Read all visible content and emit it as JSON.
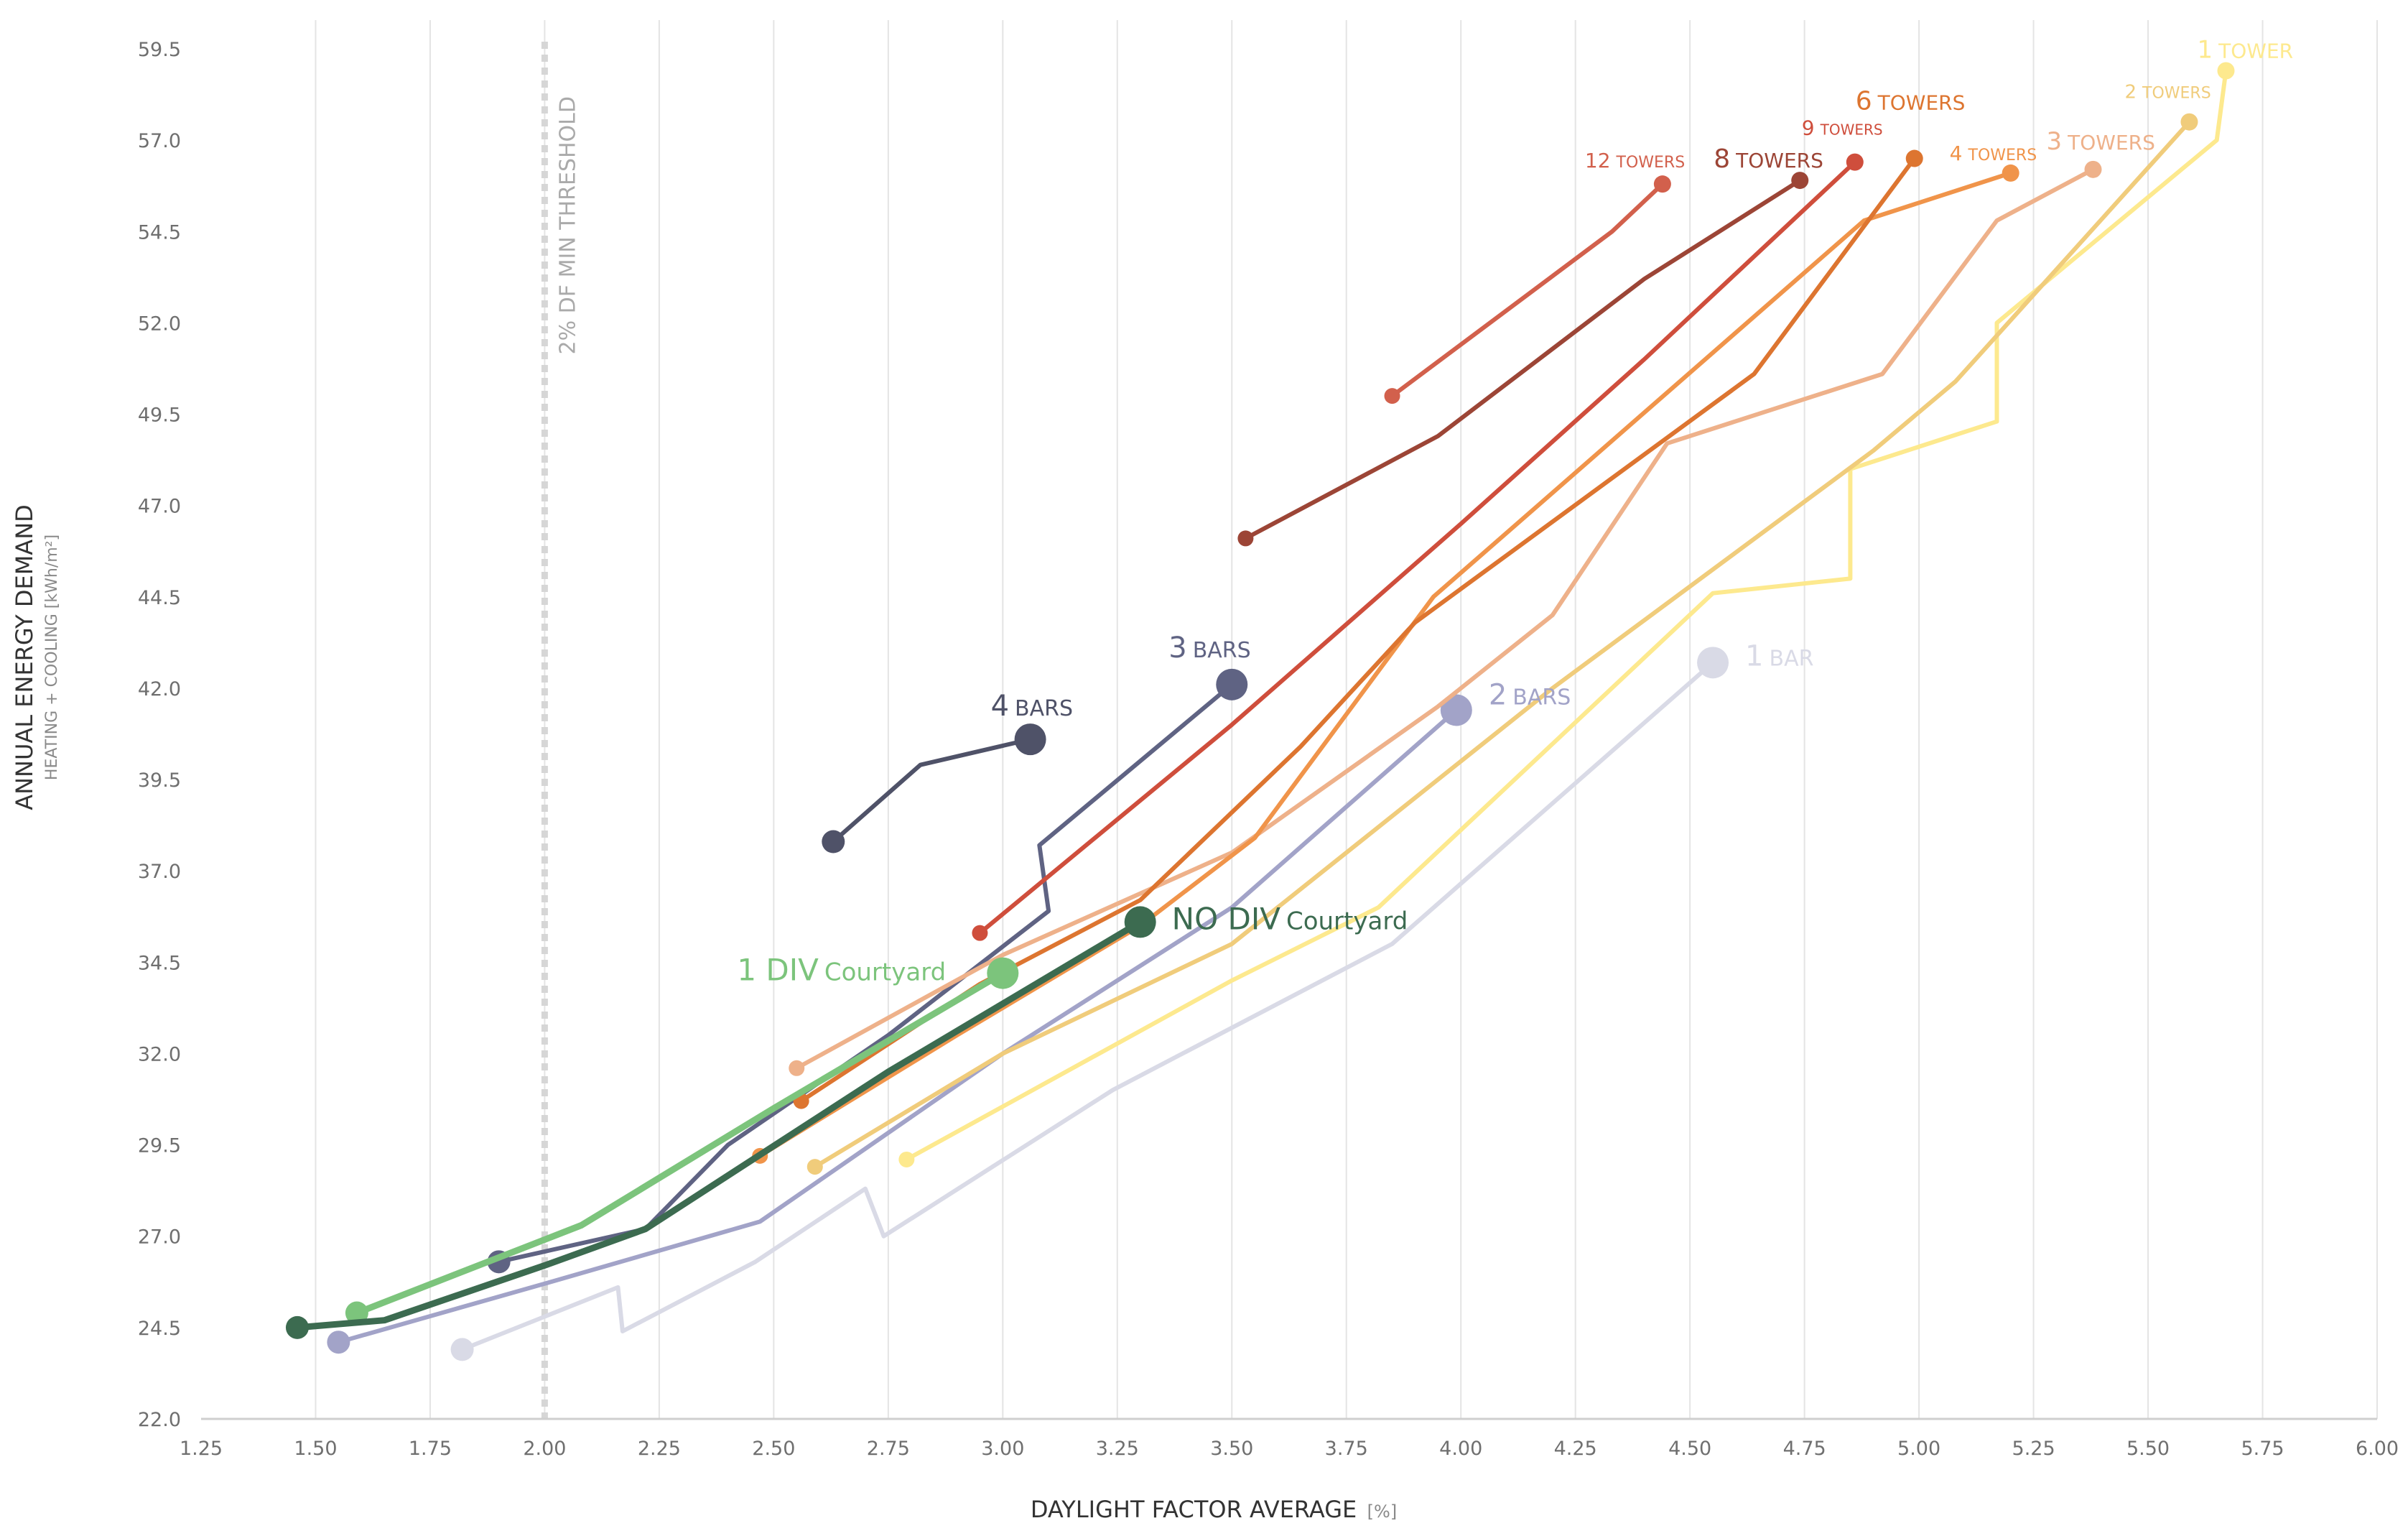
{
  "chart_data": {
    "type": "line",
    "xlabel": "DAYLIGHT FACTOR AVERAGE",
    "xlabel_unit": "[%]",
    "ylabel": "ANNUAL ENERGY DEMAND",
    "ylabel_sub": "HEATING + COOLING [kWh/m²]",
    "xlim": [
      1.25,
      6.0
    ],
    "ylim": [
      22.0,
      59.5
    ],
    "x_ticks": [
      "1.25",
      "1.50",
      "1.75",
      "2.00",
      "2.25",
      "2.50",
      "2.75",
      "3.00",
      "3.25",
      "3.50",
      "3.75",
      "4.00",
      "4.25",
      "4.50",
      "4.75",
      "5.00",
      "5.25",
      "5.50",
      "5.75",
      "6.00"
    ],
    "y_ticks": [
      "22.0",
      "24.5",
      "27.0",
      "29.5",
      "32.0",
      "34.5",
      "37.0",
      "39.5",
      "42.0",
      "44.5",
      "47.0",
      "49.5",
      "52.0",
      "54.5",
      "57.0",
      "59.5"
    ],
    "grid": "vertical",
    "threshold": {
      "x": 2.0,
      "label": "2% DF MIN THRESHOLD",
      "color": "#d6d6d6"
    },
    "series": [
      {
        "name": "1 BAR",
        "label_main": "1",
        "label_rest": "BAR",
        "color": "#d9dae6",
        "width": 6,
        "end_marker": "large",
        "points": [
          [
            1.82,
            23.9
          ],
          [
            2.0,
            24.8
          ],
          [
            2.16,
            25.6
          ],
          [
            2.17,
            24.4
          ],
          [
            2.46,
            26.3
          ],
          [
            2.7,
            28.3
          ],
          [
            2.74,
            27.0
          ],
          [
            3.24,
            31.0
          ],
          [
            3.85,
            35.0
          ],
          [
            4.55,
            42.7
          ]
        ]
      },
      {
        "name": "2 BARS",
        "label_main": "2",
        "label_rest": "BARS",
        "color": "#a2a3c8",
        "width": 6,
        "end_marker": "large",
        "points": [
          [
            1.55,
            24.1
          ],
          [
            2.0,
            25.7
          ],
          [
            2.47,
            27.4
          ],
          [
            3.0,
            32.0
          ],
          [
            3.5,
            36.0
          ],
          [
            3.99,
            41.4
          ]
        ]
      },
      {
        "name": "3 BARS",
        "label_main": "3",
        "label_rest": "BARS",
        "color": "#5f6383",
        "width": 6,
        "end_marker": "large",
        "points": [
          [
            1.9,
            26.3
          ],
          [
            2.22,
            27.2
          ],
          [
            2.4,
            29.5
          ],
          [
            2.75,
            32.5
          ],
          [
            3.1,
            35.9
          ],
          [
            3.08,
            37.7
          ],
          [
            3.5,
            42.1
          ]
        ]
      },
      {
        "name": "4 BARS",
        "label_main": "4",
        "label_rest": "BARS",
        "color": "#4f5268",
        "width": 6,
        "end_marker": "large",
        "points": [
          [
            2.63,
            37.8
          ],
          [
            2.82,
            39.9
          ],
          [
            3.06,
            40.6
          ]
        ]
      },
      {
        "name": "1 TOWER",
        "label_main": "1",
        "label_rest": "TOWER",
        "color": "#fde98e",
        "width": 6,
        "end_marker": "small",
        "points": [
          [
            2.79,
            29.1
          ],
          [
            3.5,
            34.0
          ],
          [
            3.82,
            36.0
          ],
          [
            4.55,
            44.6
          ],
          [
            4.85,
            45.0
          ],
          [
            4.85,
            48.0
          ],
          [
            5.17,
            49.3
          ],
          [
            5.17,
            52.0
          ],
          [
            5.65,
            57.0
          ],
          [
            5.67,
            58.9
          ]
        ]
      },
      {
        "name": "2 TOWERS",
        "label_main": "2",
        "label_rest": "TOWERS",
        "color": "#f0cc7b",
        "width": 6,
        "end_marker": "small",
        "points": [
          [
            2.59,
            28.9
          ],
          [
            3.0,
            32.0
          ],
          [
            3.5,
            35.0
          ],
          [
            4.2,
            42.0
          ],
          [
            4.9,
            48.5
          ],
          [
            5.08,
            50.4
          ],
          [
            5.59,
            57.5
          ]
        ]
      },
      {
        "name": "3 TOWERS",
        "label_main": "3",
        "label_rest": "TOWERS",
        "color": "#eeb18a",
        "width": 6,
        "end_marker": "small",
        "points": [
          [
            2.55,
            31.6
          ],
          [
            3.0,
            34.7
          ],
          [
            3.5,
            37.5
          ],
          [
            3.95,
            41.5
          ],
          [
            4.2,
            44.0
          ],
          [
            4.45,
            48.7
          ],
          [
            4.92,
            50.6
          ],
          [
            5.17,
            54.8
          ],
          [
            5.38,
            56.2
          ]
        ]
      },
      {
        "name": "4 TOWERS",
        "label_main": "4",
        "label_rest": "TOWERS",
        "color": "#f0944a",
        "width": 6,
        "end_marker": "small",
        "points": [
          [
            2.47,
            29.2
          ],
          [
            2.9,
            32.5
          ],
          [
            3.3,
            35.5
          ],
          [
            3.55,
            37.9
          ],
          [
            3.94,
            44.5
          ],
          [
            4.88,
            54.8
          ],
          [
            5.2,
            56.1
          ]
        ]
      },
      {
        "name": "6 TOWERS",
        "label_main": "6",
        "label_rest": "TOWERS",
        "color": "#dd7530",
        "width": 6,
        "end_marker": "small",
        "points": [
          [
            2.56,
            30.7
          ],
          [
            2.95,
            33.9
          ],
          [
            3.3,
            36.2
          ],
          [
            3.65,
            40.4
          ],
          [
            3.9,
            43.8
          ],
          [
            4.64,
            50.6
          ],
          [
            4.99,
            56.5
          ]
        ]
      },
      {
        "name": "9 TOWERS",
        "label_main": "9",
        "label_rest": "TOWERS",
        "color": "#cf4e3c",
        "width": 6,
        "end_marker": "small",
        "points": [
          [
            2.95,
            35.3
          ],
          [
            3.5,
            41.0
          ],
          [
            4.0,
            46.5
          ],
          [
            4.4,
            51.0
          ],
          [
            4.86,
            56.4
          ]
        ]
      },
      {
        "name": "8 TOWERS",
        "label_main": "8",
        "label_rest": "TOWERS",
        "color": "#9c4536",
        "width": 6,
        "end_marker": "small",
        "points": [
          [
            3.53,
            46.1
          ],
          [
            3.95,
            48.9
          ],
          [
            4.4,
            53.2
          ],
          [
            4.74,
            55.9
          ]
        ]
      },
      {
        "name": "12 TOWERS",
        "label_main": "12",
        "label_rest": "TOWERS",
        "color": "#d2604c",
        "width": 6,
        "end_marker": "small",
        "points": [
          [
            3.85,
            50.0
          ],
          [
            4.33,
            54.5
          ],
          [
            4.44,
            55.8
          ]
        ]
      },
      {
        "name": "1 DIV Courtyard",
        "label_main": "1 DIV",
        "label_rest": "Courtyard",
        "color": "#7cc47c",
        "width": 9,
        "end_marker": "large",
        "points": [
          [
            1.59,
            24.9
          ],
          [
            2.08,
            27.3
          ],
          [
            2.5,
            30.5
          ],
          [
            3.0,
            34.2
          ]
        ]
      },
      {
        "name": "NO DIV Courtyard",
        "label_main": "NO DIV",
        "label_rest": "Courtyard",
        "color": "#3c6b50",
        "width": 9,
        "end_marker": "large",
        "points": [
          [
            1.46,
            24.5
          ],
          [
            1.65,
            24.7
          ],
          [
            2.0,
            26.2
          ],
          [
            2.22,
            27.2
          ],
          [
            2.75,
            31.5
          ],
          [
            3.3,
            35.6
          ]
        ]
      }
    ]
  }
}
